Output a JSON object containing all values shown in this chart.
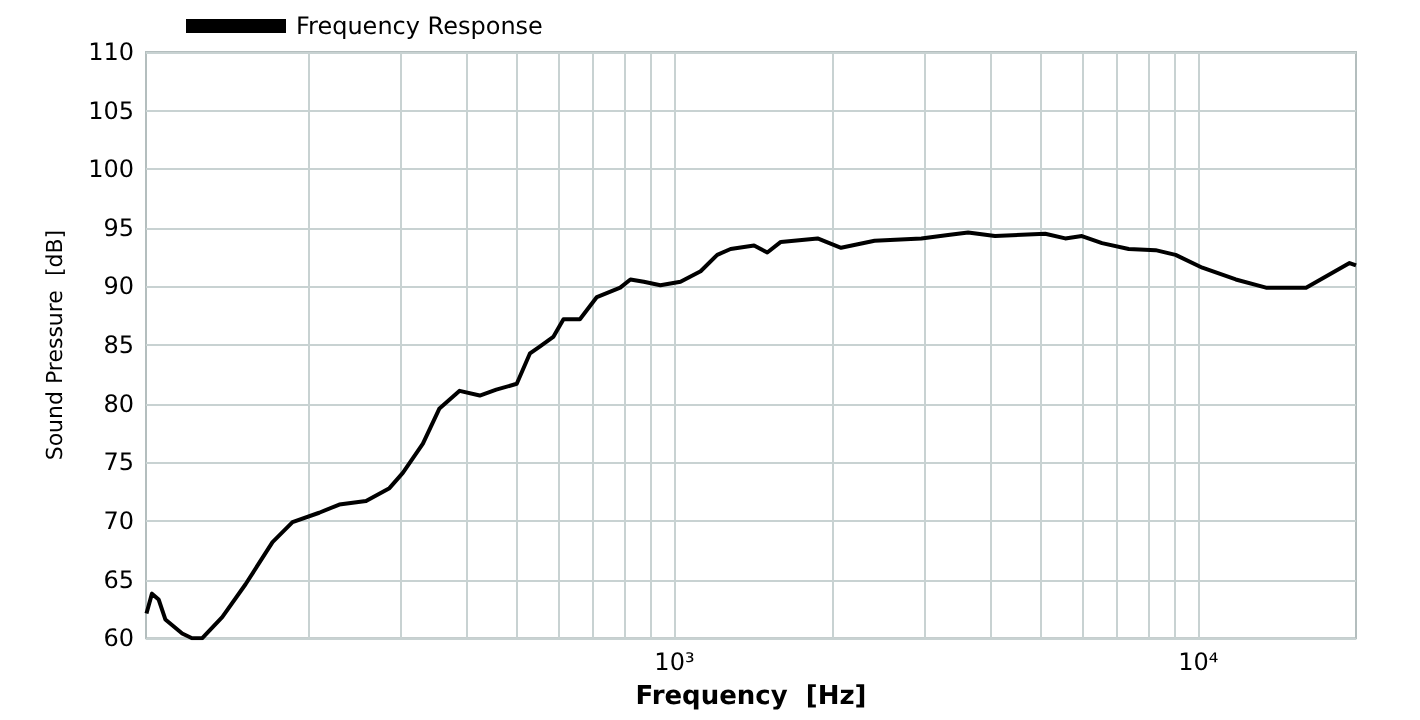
{
  "chart_data": {
    "type": "line",
    "xlabel": "Frequency  [Hz]",
    "ylabel": "Sound Pressure  [dB]",
    "log": "x",
    "grid": true,
    "legend": "top left",
    "x": [
      98.2,
      100.6,
      103.6,
      106.7,
      114.9,
      120,
      125.5,
      137,
      151.8,
      170.9,
      186.6,
      209.8,
      229.2,
      257.8,
      285.7,
      303,
      331,
      356,
      389,
      425,
      457,
      500,
      530,
      554,
      587,
      614,
      660,
      711,
      788,
      824,
      874,
      940,
      1027,
      1122,
      1207,
      1280,
      1419,
      1504,
      1596,
      1876,
      2080,
      2410,
      2960,
      3329,
      3636,
      4092,
      5103,
      5572,
      5995,
      6549,
      7364,
      8287,
      9050,
      10178,
      11792,
      13465,
      16060,
      17283,
      19442,
      20000
    ],
    "series": [
      {
        "name": "Frequency Response",
        "color": "#000000",
        "values": [
          62.1,
          63.8,
          63.3,
          61.6,
          60.4,
          60,
          60,
          61.8,
          64.6,
          68.2,
          69.9,
          70.7,
          71.4,
          71.7,
          72.8,
          74.1,
          76.6,
          79.6,
          81.1,
          80.7,
          81.2,
          81.7,
          84.3,
          84.9,
          85.7,
          87.2,
          87.2,
          89.1,
          89.9,
          90.6,
          90.4,
          90.1,
          90.4,
          91.3,
          92.7,
          93.2,
          93.5,
          92.9,
          93.8,
          94.1,
          93.3,
          93.9,
          94.1,
          94.4,
          94.6,
          94.3,
          94.5,
          94.1,
          94.3,
          93.7,
          93.2,
          93.1,
          92.7,
          91.6,
          90.6,
          89.9,
          89.9,
          90.7,
          92,
          91.8
        ]
      }
    ],
    "xlim": [
      98,
      20000
    ],
    "xticks": [
      {
        "value": 200,
        "label": null
      },
      {
        "value": 300,
        "label": null
      },
      {
        "value": 400,
        "label": null
      },
      {
        "value": 500,
        "label": null
      },
      {
        "value": 600,
        "label": null
      },
      {
        "value": 700,
        "label": null
      },
      {
        "value": 800,
        "label": null
      },
      {
        "value": 900,
        "label": null
      },
      {
        "value": 1000,
        "label": "10³"
      },
      {
        "value": 2000,
        "label": null
      },
      {
        "value": 3000,
        "label": null
      },
      {
        "value": 4000,
        "label": null
      },
      {
        "value": 5000,
        "label": null
      },
      {
        "value": 6000,
        "label": null
      },
      {
        "value": 7000,
        "label": null
      },
      {
        "value": 8000,
        "label": null
      },
      {
        "value": 9000,
        "label": null
      },
      {
        "value": 10000,
        "label": "10⁴"
      }
    ],
    "ylim": [
      60,
      110
    ],
    "yticks": [
      60,
      65,
      70,
      75,
      80,
      85,
      90,
      95,
      100,
      105,
      110
    ]
  }
}
